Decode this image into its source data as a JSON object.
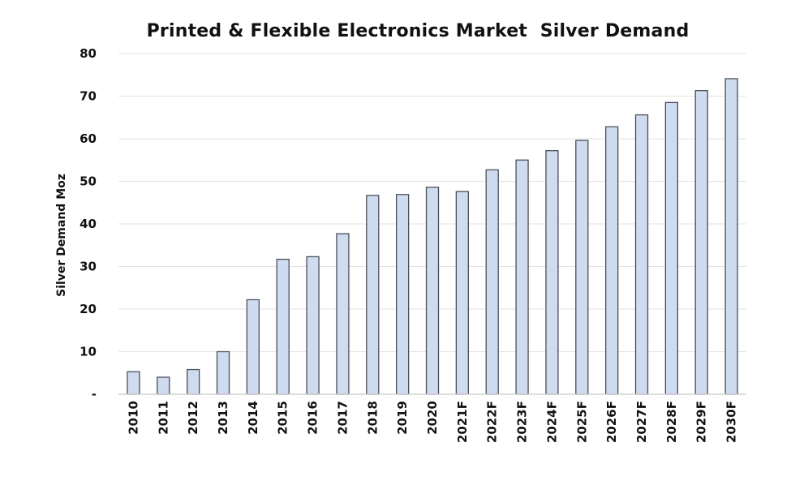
{
  "chart_data": {
    "type": "bar",
    "title": "Printed & Flexible Electronics Market  Silver Demand",
    "xlabel": "",
    "ylabel": "Silver Demand Moz",
    "ylim": [
      0,
      80
    ],
    "yticks": [
      "-",
      "10",
      "20",
      "30",
      "40",
      "50",
      "60",
      "70",
      "80"
    ],
    "grid": true,
    "categories": [
      "2010",
      "2011",
      "2012",
      "2013",
      "2014",
      "2015",
      "2016",
      "2017",
      "2018",
      "2019",
      "2020",
      "2021F",
      "2022F",
      "2023F",
      "2024F",
      "2025F",
      "2026F",
      "2027F",
      "2028F",
      "2029F",
      "2030F"
    ],
    "series": [
      {
        "values": [
          5.3,
          4.0,
          5.8,
          10.0,
          22.2,
          31.7,
          32.3,
          37.7,
          46.7,
          46.9,
          48.6,
          47.6,
          52.7,
          55.0,
          57.2,
          59.6,
          62.8,
          65.6,
          68.5,
          71.3,
          74.1
        ]
      }
    ],
    "colors": {
      "bar_fill": "#cfdcef",
      "bar_stroke": "#4a4f58",
      "grid": "#e3e3e3",
      "text": "#111111"
    }
  }
}
